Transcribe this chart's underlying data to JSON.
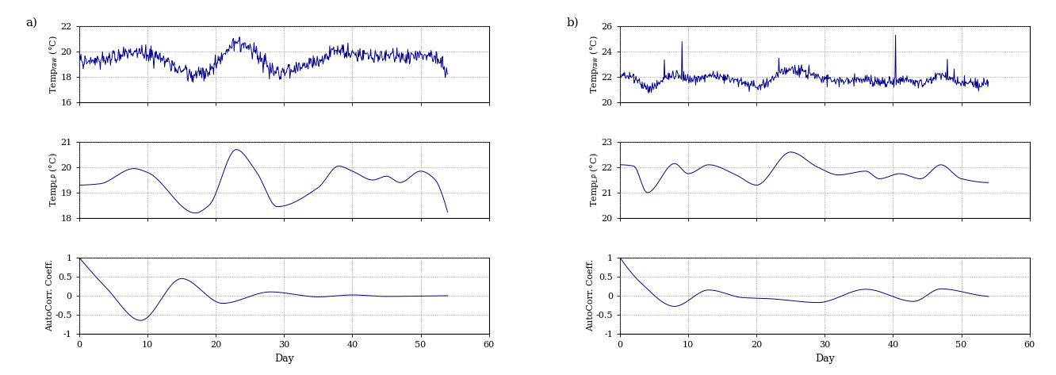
{
  "line_color": "#00008B",
  "background_color": "#ffffff",
  "grid_color": "#888888",
  "xlim": [
    0,
    60
  ],
  "xticks": [
    0,
    10,
    20,
    30,
    40,
    50,
    60
  ],
  "xlabel": "Day",
  "panel_a": {
    "label": "a)",
    "raw_ylim": [
      16,
      22
    ],
    "raw_yticks": [
      16,
      18,
      20,
      22
    ],
    "lp_ylim": [
      18,
      21
    ],
    "lp_yticks": [
      18,
      19,
      20,
      21
    ],
    "ac_ylim": [
      -1,
      1
    ],
    "ac_yticks": [
      -1,
      -0.5,
      0,
      0.5,
      1
    ]
  },
  "panel_b": {
    "label": "b)",
    "raw_ylim": [
      20,
      26
    ],
    "raw_yticks": [
      20,
      22,
      24,
      26
    ],
    "lp_ylim": [
      20,
      23
    ],
    "lp_yticks": [
      20,
      21,
      22,
      23
    ],
    "ac_ylim": [
      -1,
      1
    ],
    "ac_yticks": [
      -1,
      -0.5,
      0,
      0.5,
      1
    ]
  }
}
